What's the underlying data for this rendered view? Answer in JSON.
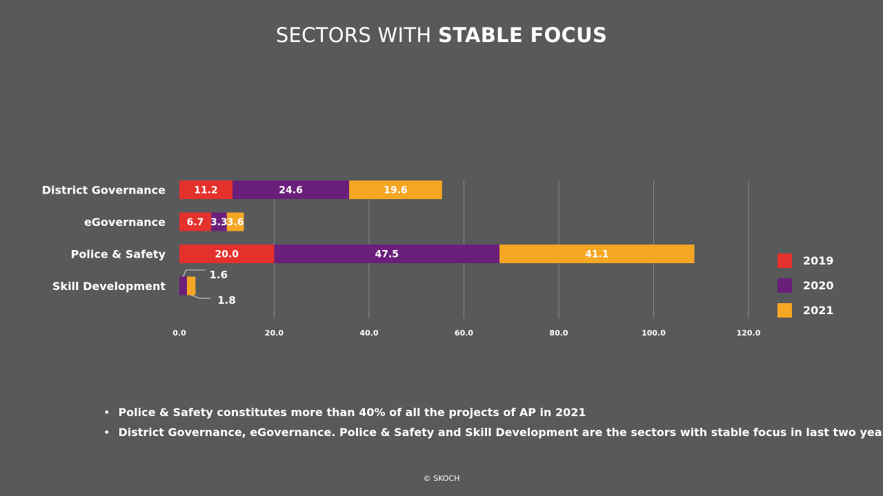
{
  "title": {
    "light": "SECTORS WITH ",
    "bold": "STABLE FOCUS"
  },
  "chart_data": {
    "type": "bar",
    "orientation": "horizontal",
    "stacked": true,
    "categories": [
      "District Governance",
      "eGovernance",
      "Police & Safety",
      "Skill Development"
    ],
    "series": [
      {
        "name": "2019",
        "color": "#e4312b",
        "values": [
          11.2,
          6.7,
          20.0,
          0
        ],
        "labels": [
          "11.2",
          "6.7",
          "20.0",
          ""
        ]
      },
      {
        "name": "2020",
        "color": "#6a1f7a",
        "values": [
          24.6,
          3.3,
          47.5,
          1.6
        ],
        "labels": [
          "24.6",
          "3.3",
          "47.5",
          "1.6"
        ]
      },
      {
        "name": "2021",
        "color": "#f5a623",
        "values": [
          19.6,
          3.6,
          41.1,
          1.8
        ],
        "labels": [
          "19.6",
          "3.6",
          "41.1",
          "1.8"
        ]
      }
    ],
    "xlim": [
      0,
      120
    ],
    "xticks": [
      "0.0",
      "20.0",
      "40.0",
      "60.0",
      "80.0",
      "100.0",
      "120.0"
    ],
    "grid": "vertical",
    "legend": "right",
    "callout_category": "Skill Development"
  },
  "bullets": [
    "Police & Safety constitutes more than 40% of all the projects of AP in 2021",
    "District Governance, eGovernance. Police & Safety and Skill Development are the sectors with stable focus in last two years"
  ],
  "footer": "© SKOCH"
}
